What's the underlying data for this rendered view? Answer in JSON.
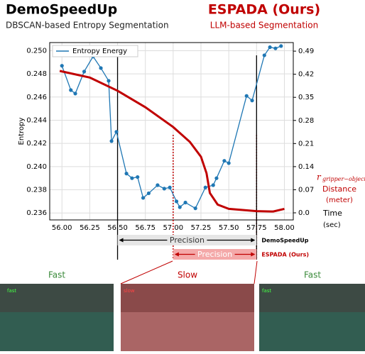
{
  "header": {
    "left_title": "DemoSpeedUp",
    "left_subtitle": "DBSCAN-based Entropy Segmentation",
    "right_title": "ESPADA (Ours)",
    "right_subtitle": "LLM-based Segmentation"
  },
  "chart_data": {
    "type": "line",
    "y_label": "Entropy",
    "x_label": "Time",
    "x_unit": "(sec)",
    "y2_symbol": "r",
    "y2_symbol_sub": "gripper−object",
    "y2_label": "Distance",
    "y2_unit": "(meter)",
    "xlim": [
      55.89,
      58.08
    ],
    "ylim": [
      0.2354,
      0.2507
    ],
    "y2lim": [
      -0.0215,
      0.516
    ],
    "xticks": [
      {
        "value": 56,
        "label": "56.00"
      },
      56.25,
      {
        "value": 56.5,
        "label": "56.50"
      },
      56.75,
      {
        "value": 57,
        "label": "57.00"
      },
      57.25,
      {
        "value": 57.5,
        "label": "57.50"
      },
      57.75,
      {
        "value": 58,
        "label": "58.00"
      }
    ],
    "yticks": [
      0.236,
      0.238,
      {
        "value": 0.24,
        "label": "0.240"
      },
      0.242,
      0.244,
      0.246,
      0.248,
      {
        "value": 0.25,
        "label": "0.250"
      }
    ],
    "y2ticks": [
      {
        "value": 0,
        "label": "0.0"
      },
      0.07,
      0.14,
      0.21,
      0.28,
      0.35,
      0.42,
      0.49
    ],
    "grid": true,
    "legend": "upper left",
    "series": [
      {
        "name": "Entropy Energy",
        "color": "#1f77b4",
        "x": [
          56.0,
          56.08,
          56.12,
          56.2,
          56.28,
          56.35,
          56.42,
          56.446,
          56.49,
          56.58,
          56.63,
          56.68,
          56.73,
          56.78,
          56.86,
          56.92,
          56.97,
          57.03,
          57.06,
          57.11,
          57.2,
          57.29,
          57.36,
          57.39,
          57.46,
          57.5,
          57.66,
          57.71,
          57.82,
          57.87,
          57.92,
          57.97
        ],
        "values": [
          0.2487,
          0.2466,
          0.2463,
          0.2482,
          0.2495,
          0.2485,
          0.2474,
          0.2422,
          0.243,
          0.2394,
          0.239,
          0.2391,
          0.2373,
          0.2377,
          0.2384,
          0.2381,
          0.2382,
          0.237,
          0.2365,
          0.2369,
          0.2364,
          0.2382,
          0.2384,
          0.239,
          0.2405,
          0.2403,
          0.2461,
          0.2457,
          0.2496,
          0.2503,
          0.2502,
          0.2504
        ]
      },
      {
        "color": "#c00000",
        "axis": "y2",
        "x": [
          55.98,
          56.25,
          56.5,
          56.75,
          57.0,
          57.15,
          57.25,
          57.3,
          57.33,
          57.4,
          57.5,
          57.75,
          57.9,
          58.0
        ],
        "values": [
          0.43,
          0.41,
          0.37,
          0.32,
          0.26,
          0.215,
          0.17,
          0.12,
          0.06,
          0.025,
          0.012,
          0.005,
          0.004,
          0.012
        ]
      }
    ],
    "baseline_cuts": [
      56.5,
      57.75
    ],
    "ours_cuts": [
      57.0,
      57.75
    ],
    "baseline_span_label": "Precision",
    "baseline_name": "DemoSpeedUp",
    "ours_span_label": "Precision",
    "ours_name": "ESPADA (Ours)"
  },
  "panels": [
    {
      "label": "Fast",
      "tag": "fast"
    },
    {
      "label": "Slow",
      "tag": "slow"
    },
    {
      "label": "Fast",
      "tag": "fast"
    }
  ]
}
